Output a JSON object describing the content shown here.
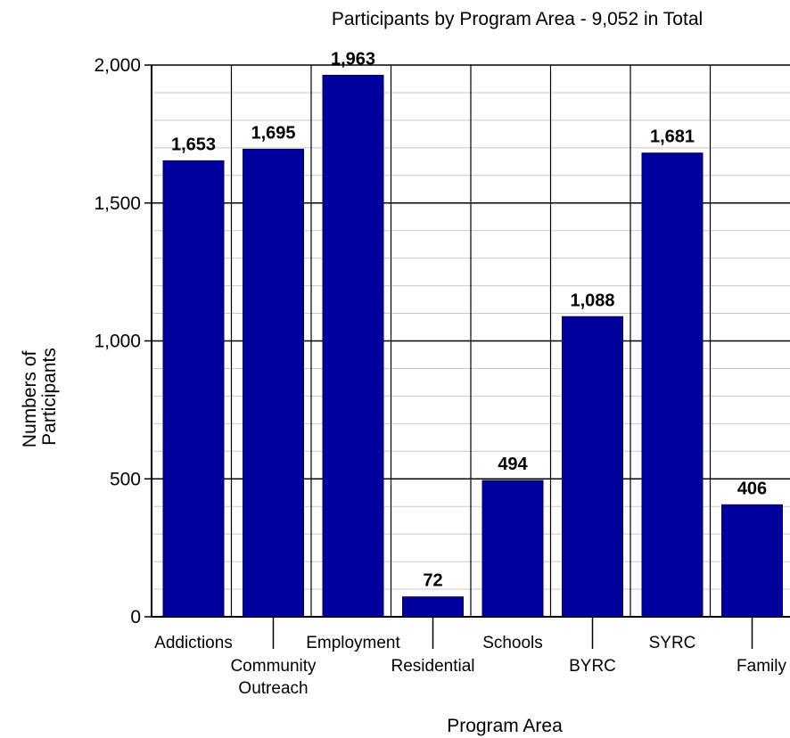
{
  "chart_data": {
    "type": "bar",
    "title": "Participants by Program Area - 9,052 in Total",
    "xlabel": "Program Area",
    "ylabel": [
      "Numbers of",
      "Participants"
    ],
    "categories": [
      [
        "Addictions"
      ],
      [
        "Community",
        "Outreach"
      ],
      [
        "Employment"
      ],
      [
        "Residential"
      ],
      [
        "Schools"
      ],
      [
        "BYRC"
      ],
      [
        "SYRC"
      ],
      [
        "Family"
      ]
    ],
    "values": [
      1653,
      1695,
      1963,
      72,
      494,
      1088,
      1681,
      406
    ],
    "value_labels": [
      "1,653",
      "1,695",
      "1,963",
      "72",
      "494",
      "1,088",
      "1,681",
      "406"
    ],
    "yticks": [
      {
        "value": 0,
        "label": "0"
      },
      {
        "value": 500,
        "label": "500"
      },
      {
        "value": 1000,
        "label": "1,000"
      },
      {
        "value": 1500,
        "label": "1,500"
      },
      {
        "value": 2000,
        "label": "2,000"
      }
    ],
    "ylim": [
      0,
      2000
    ],
    "grid": true,
    "bar_color": "#00009c"
  }
}
